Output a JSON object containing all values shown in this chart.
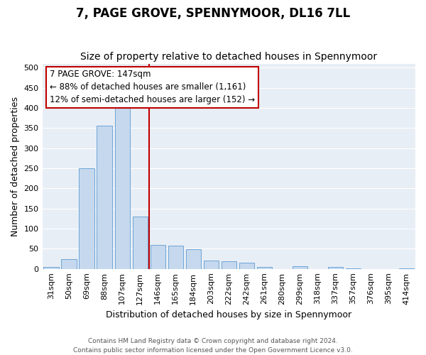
{
  "title": "7, PAGE GROVE, SPENNYMOOR, DL16 7LL",
  "subtitle": "Size of property relative to detached houses in Spennymoor",
  "xlabel": "Distribution of detached houses by size in Spennymoor",
  "ylabel": "Number of detached properties",
  "footer_line1": "Contains HM Land Registry data © Crown copyright and database right 2024.",
  "footer_line2": "Contains public sector information licensed under the Open Government Licence v3.0.",
  "categories": [
    "31sqm",
    "50sqm",
    "69sqm",
    "88sqm",
    "107sqm",
    "127sqm",
    "146sqm",
    "165sqm",
    "184sqm",
    "203sqm",
    "222sqm",
    "242sqm",
    "261sqm",
    "280sqm",
    "299sqm",
    "318sqm",
    "337sqm",
    "357sqm",
    "376sqm",
    "395sqm",
    "414sqm"
  ],
  "values": [
    5,
    25,
    250,
    355,
    405,
    130,
    60,
    58,
    48,
    20,
    18,
    15,
    5,
    0,
    6,
    0,
    5,
    1,
    0,
    0,
    1
  ],
  "bar_color": "#c5d8ed",
  "bar_edge_color": "#5b9bd5",
  "vline_x_index": 6,
  "vline_color": "#c00000",
  "annotation_line1": "7 PAGE GROVE: 147sqm",
  "annotation_line2": "← 88% of detached houses are smaller (1,161)",
  "annotation_line3": "12% of semi-detached houses are larger (152) →",
  "annotation_box_color": "#ffffff",
  "annotation_box_edgecolor": "#c00000",
  "ylim": [
    0,
    510
  ],
  "yticks": [
    0,
    50,
    100,
    150,
    200,
    250,
    300,
    350,
    400,
    450,
    500
  ],
  "figure_bg": "#ffffff",
  "plot_bg": "#e8eef5",
  "grid_color": "#ffffff",
  "title_fontsize": 12,
  "subtitle_fontsize": 10,
  "axis_label_fontsize": 9,
  "tick_fontsize": 8,
  "annotation_fontsize": 8.5
}
